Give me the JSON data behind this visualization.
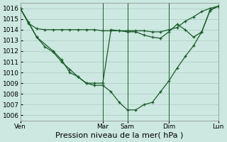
{
  "bg_color": "#cce8e0",
  "grid_color": "#aaccC4",
  "line_color": "#1a5c2a",
  "xlabel": "Pression niveau de la mer( hPa )",
  "ylim": [
    1005.5,
    1016.5
  ],
  "yticks": [
    1006,
    1007,
    1008,
    1009,
    1010,
    1011,
    1012,
    1013,
    1014,
    1015,
    1016
  ],
  "xtick_labels": [
    "Ven",
    "Mar",
    "Sam",
    "Dim",
    "Lun"
  ],
  "xtick_positions": [
    0,
    10,
    13,
    18,
    24
  ],
  "vlines": [
    10,
    13,
    18,
    24
  ],
  "series1_x": [
    0,
    1,
    2,
    3,
    4,
    5,
    6,
    7,
    8,
    9,
    10,
    11,
    12,
    13,
    14,
    15,
    16,
    17,
    18,
    19,
    20,
    21,
    22,
    23,
    24
  ],
  "series1_y": [
    1016.0,
    1014.6,
    1014.1,
    1014.0,
    1014.0,
    1014.0,
    1014.0,
    1014.0,
    1014.0,
    1014.0,
    1013.9,
    1013.9,
    1013.9,
    1013.9,
    1013.9,
    1013.9,
    1013.8,
    1013.8,
    1014.0,
    1014.2,
    1014.8,
    1015.2,
    1015.7,
    1016.0,
    1016.2
  ],
  "series2_x": [
    0,
    1,
    2,
    3,
    4,
    5,
    6,
    7,
    8,
    9,
    10,
    11,
    12,
    13,
    14,
    15,
    16,
    17,
    18,
    19,
    20,
    21,
    22,
    23,
    24
  ],
  "series2_y": [
    1016.0,
    1014.7,
    1013.3,
    1012.4,
    1011.9,
    1011.0,
    1010.3,
    1009.6,
    1009.0,
    1008.8,
    1008.8,
    1008.2,
    1007.2,
    1006.5,
    1006.5,
    1007.0,
    1007.2,
    1008.2,
    1009.2,
    1010.4,
    1011.5,
    1012.5,
    1013.8,
    1015.8,
    1016.2
  ],
  "series3_x": [
    0,
    2,
    4,
    5,
    6,
    7,
    8,
    9,
    10,
    11,
    12,
    13,
    14,
    15,
    16,
    17,
    18,
    19,
    20,
    21,
    22,
    23,
    24
  ],
  "series3_y": [
    1016.0,
    1013.3,
    1012.0,
    1011.2,
    1010.0,
    1009.6,
    1009.0,
    1009.0,
    1009.0,
    1014.0,
    1013.9,
    1013.8,
    1013.8,
    1013.5,
    1013.3,
    1013.2,
    1013.8,
    1014.5,
    1014.0,
    1013.3,
    1013.8,
    1015.8,
    1016.2
  ],
  "x_total": 24,
  "xlabel_fontsize": 8,
  "tick_fontsize": 6.5
}
